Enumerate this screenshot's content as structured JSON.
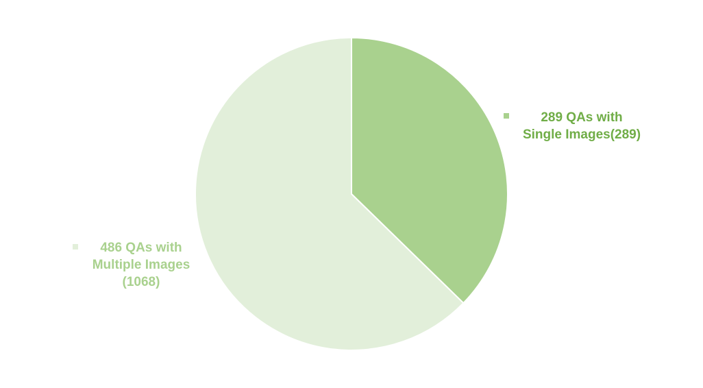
{
  "chart_data": {
    "type": "pie",
    "slices": [
      {
        "label_lines": [
          "289 QAs with",
          "Single Images(289)"
        ],
        "value": 289,
        "color": "#a9d18e",
        "label_color": "#70ad47"
      },
      {
        "label_lines": [
          "486 QAs with",
          "Multiple Images",
          "(1068)"
        ],
        "value": 486,
        "color": "#e2efda",
        "label_color": "#a9d18e"
      }
    ],
    "start_angle": "12 o'clock",
    "direction": "clockwise",
    "slice_border_color": "#ffffff"
  }
}
